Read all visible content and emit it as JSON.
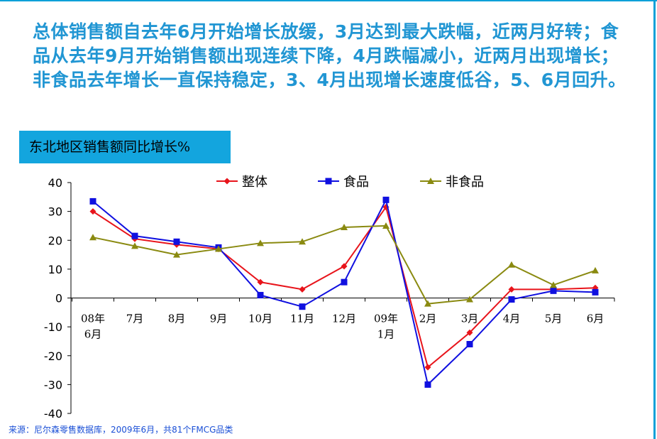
{
  "headline": "总体销售额自去年6月开始增长放缓，3月达到最大跌幅，近两月好转；食品从去年9月开始销售额出现连续下降，4月跌幅减小，近两月出现增长；非食品去年增长一直保持稳定，3、4月出现增长速度低谷，5、6月回升。",
  "source": "来源：尼尔森零售数据库，2009年6月，共81个FMCG品类",
  "colors": {
    "accent": "#13a5de",
    "headline": "#2196d3",
    "source": "#1a4fd6"
  },
  "chart_data": {
    "type": "line",
    "title": "东北地区销售额同比增长%",
    "categories": [
      "08年\n6月",
      "7月",
      "8月",
      "9月",
      "10月",
      "11月",
      "12月",
      "09年\n1月",
      "2月",
      "3月",
      "4月",
      "5月",
      "6月"
    ],
    "ylim": [
      -40,
      40
    ],
    "yticks": [
      40,
      30,
      20,
      10,
      0,
      -10,
      -20,
      -30,
      -40
    ],
    "legend_position": "top",
    "grid": false,
    "series": [
      {
        "name": "整体",
        "color": "#e8141b",
        "marker": "diamond",
        "values": [
          30,
          20.5,
          18.5,
          17,
          5.5,
          3,
          11,
          31.5,
          -24,
          -12,
          3,
          3,
          3.5
        ]
      },
      {
        "name": "食品",
        "color": "#1010e0",
        "marker": "square",
        "values": [
          33.5,
          21.5,
          19.5,
          17.5,
          1,
          -3,
          5.5,
          34,
          -30,
          -16,
          -0.5,
          2.5,
          2
        ]
      },
      {
        "name": "非食品",
        "color": "#8a8a10",
        "marker": "triangle",
        "values": [
          21,
          18,
          15,
          17,
          19,
          19.5,
          24.5,
          25,
          -2,
          -0.5,
          11.5,
          4.5,
          9.5
        ]
      }
    ]
  }
}
